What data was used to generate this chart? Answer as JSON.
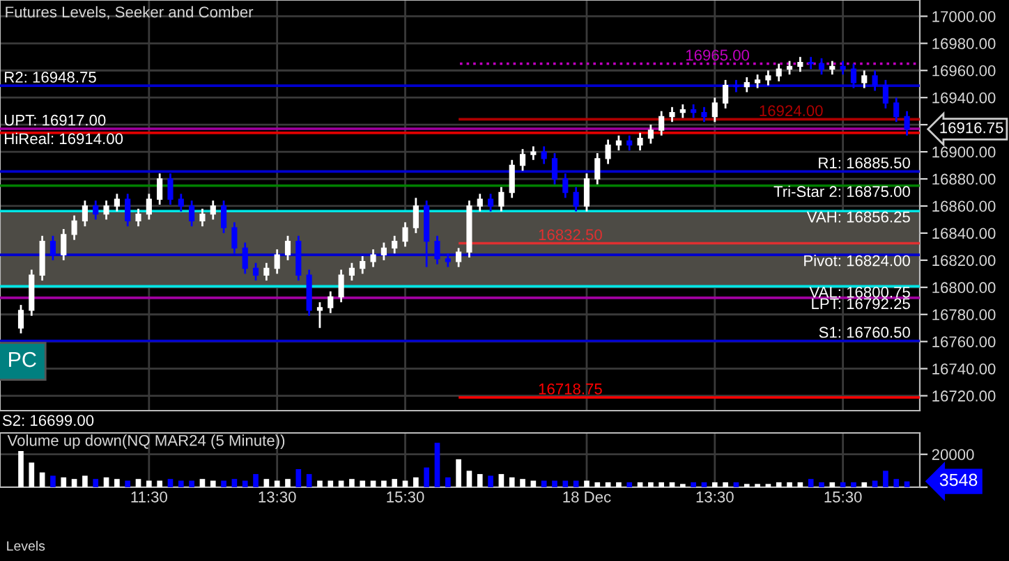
{
  "chart_data": [
    {
      "type": "candlestick",
      "title": "Futures Levels, Seeker and Comber",
      "categories": [
        null,
        null,
        null,
        null,
        null,
        null,
        null,
        null,
        null,
        null,
        null,
        null,
        null,
        null,
        null,
        null,
        null,
        null,
        null,
        null,
        null,
        null,
        null,
        null,
        null,
        null,
        null,
        null,
        null,
        null,
        null,
        null,
        null,
        null,
        null,
        null,
        null,
        null,
        null,
        null,
        null,
        null,
        null,
        null,
        null,
        null,
        null,
        null,
        null,
        null,
        null,
        null,
        null,
        null,
        null,
        null,
        null,
        null,
        null,
        null,
        null,
        null,
        null,
        null,
        null,
        null,
        null,
        null,
        null,
        null,
        null,
        null,
        null,
        null,
        null,
        null,
        null,
        null,
        null,
        null,
        null,
        null,
        null,
        null
      ],
      "ohlc": [
        [
          16770,
          16787,
          16766,
          16783
        ],
        [
          16783,
          16813,
          16779,
          16809
        ],
        [
          16809,
          16838,
          16805,
          16834
        ],
        [
          16834,
          16838,
          16820,
          16824
        ],
        [
          16824,
          16843,
          16820,
          16839
        ],
        [
          16839,
          16853,
          16835,
          16849
        ],
        [
          16849,
          16864,
          16845,
          16860
        ],
        [
          16860,
          16864,
          16850,
          16854
        ],
        [
          16854,
          16864,
          16850,
          16860
        ],
        [
          16860,
          16869,
          16856,
          16865
        ],
        [
          16865,
          16869,
          16845,
          16849
        ],
        [
          16849,
          16858,
          16845,
          16854
        ],
        [
          16854,
          16869,
          16850,
          16865
        ],
        [
          16865,
          16884,
          16861,
          16880
        ],
        [
          16880,
          16884,
          16861,
          16865
        ],
        [
          16865,
          16869,
          16856,
          16860
        ],
        [
          16860,
          16864,
          16845,
          16849
        ],
        [
          16849,
          16858,
          16845,
          16854
        ],
        [
          16854,
          16864,
          16850,
          16860
        ],
        [
          16860,
          16864,
          16840,
          16844
        ],
        [
          16844,
          16848,
          16825,
          16829
        ],
        [
          16829,
          16833,
          16810,
          16814
        ],
        [
          16814,
          16818,
          16805,
          16809
        ],
        [
          16809,
          16818,
          16805,
          16814
        ],
        [
          16814,
          16828,
          16810,
          16824
        ],
        [
          16824,
          16838,
          16820,
          16834
        ],
        [
          16834,
          16838,
          16805,
          16809
        ],
        [
          16809,
          16813,
          16779,
          16783
        ],
        [
          16783,
          16789,
          16770,
          16785
        ],
        [
          16785,
          16797,
          16781,
          16793
        ],
        [
          16793,
          16813,
          16789,
          16809
        ],
        [
          16809,
          16818,
          16805,
          16814
        ],
        [
          16814,
          16823,
          16810,
          16819
        ],
        [
          16819,
          16828,
          16815,
          16824
        ],
        [
          16824,
          16833,
          16820,
          16829
        ],
        [
          16829,
          16838,
          16825,
          16834
        ],
        [
          16834,
          16848,
          16830,
          16844
        ],
        [
          16844,
          16866,
          16840,
          16860
        ],
        [
          16860,
          16864,
          16815,
          16834
        ],
        [
          16834,
          16838,
          16817,
          16821
        ],
        [
          16821,
          16825,
          16815,
          16819
        ],
        [
          16819,
          16829,
          16815,
          16826
        ],
        [
          16826,
          16864,
          16822,
          16860
        ],
        [
          16860,
          16869,
          16856,
          16865
        ],
        [
          16865,
          16869,
          16856,
          16860
        ],
        [
          16860,
          16874,
          16856,
          16870
        ],
        [
          16870,
          16894,
          16866,
          16890
        ],
        [
          16890,
          16902,
          16886,
          16898
        ],
        [
          16898,
          16904,
          16894,
          16900
        ],
        [
          16900,
          16904,
          16891,
          16895
        ],
        [
          16895,
          16899,
          16876,
          16880
        ],
        [
          16880,
          16884,
          16866,
          16870
        ],
        [
          16870,
          16874,
          16856,
          16860
        ],
        [
          16860,
          16884,
          16856,
          16880
        ],
        [
          16880,
          16899,
          16876,
          16895
        ],
        [
          16895,
          16909,
          16891,
          16905
        ],
        [
          16905,
          16912,
          16901,
          16908
        ],
        [
          16908,
          16912,
          16901,
          16905
        ],
        [
          16905,
          16914,
          16901,
          16910
        ],
        [
          16910,
          16920,
          16906,
          16916
        ],
        [
          16916,
          16930,
          16912,
          16926
        ],
        [
          16926,
          16933,
          16922,
          16929
        ],
        [
          16929,
          16935,
          16925,
          16931
        ],
        [
          16931,
          16935,
          16925,
          16929
        ],
        [
          16929,
          16933,
          16922,
          16926
        ],
        [
          16926,
          16940,
          16922,
          16936
        ],
        [
          16936,
          16953,
          16932,
          16949
        ],
        [
          16949,
          16953,
          16944,
          16948
        ],
        [
          16948,
          16955,
          16944,
          16951
        ],
        [
          16951,
          16957,
          16947,
          16953
        ],
        [
          16953,
          16960,
          16949,
          16956
        ],
        [
          16956,
          16965,
          16952,
          16961
        ],
        [
          16961,
          16967,
          16957,
          16963
        ],
        [
          16963,
          16970,
          16959,
          16966
        ],
        [
          16966,
          16970,
          16961,
          16965
        ],
        [
          16965,
          16969,
          16957,
          16961
        ],
        [
          16961,
          16967,
          16957,
          16963
        ],
        [
          16963,
          16967,
          16957,
          16961
        ],
        [
          16961,
          16965,
          16947,
          16951
        ],
        [
          16951,
          16960,
          16947,
          16956
        ],
        [
          16956,
          16960,
          16945,
          16949
        ],
        [
          16949,
          16953,
          16932,
          16936
        ],
        [
          16936,
          16940,
          16922,
          16926
        ],
        [
          16926,
          16930,
          16912,
          16916.75
        ]
      ],
      "colors": [
        "#ffffff",
        "#ffffff",
        "#ffffff",
        "#0000ff",
        "#ffffff",
        "#ffffff",
        "#ffffff",
        "#0000ff",
        "#ffffff",
        "#ffffff",
        "#0000ff",
        "#ffffff",
        "#ffffff",
        "#ffffff",
        "#0000ff",
        "#0000ff",
        "#0000ff",
        "#ffffff",
        "#ffffff",
        "#0000ff",
        "#0000ff",
        "#0000ff",
        "#0000ff",
        "#ffffff",
        "#ffffff",
        "#ffffff",
        "#0000ff",
        "#0000ff",
        "#ffffff",
        "#ffffff",
        "#ffffff",
        "#ffffff",
        "#ffffff",
        "#ffffff",
        "#ffffff",
        "#ffffff",
        "#ffffff",
        "#ffffff",
        "#0000ff",
        "#0000ff",
        "#0000ff",
        "#ffffff",
        "#ffffff",
        "#ffffff",
        "#0000ff",
        "#ffffff",
        "#ffffff",
        "#ffffff",
        "#ffffff",
        "#0000ff",
        "#0000ff",
        "#0000ff",
        "#0000ff",
        "#ffffff",
        "#ffffff",
        "#ffffff",
        "#ffffff",
        "#0000ff",
        "#ffffff",
        "#ffffff",
        "#ffffff",
        "#ffffff",
        "#ffffff",
        "#0000ff",
        "#0000ff",
        "#ffffff",
        "#ffffff",
        "#0000ff",
        "#ffffff",
        "#ffffff",
        "#ffffff",
        "#ffffff",
        "#ffffff",
        "#ffffff",
        "#0000ff",
        "#0000ff",
        "#ffffff",
        "#0000ff",
        "#0000ff",
        "#ffffff",
        "#0000ff",
        "#0000ff",
        "#0000ff",
        "#0000ff"
      ],
      "ylim": [
        16709,
        17012
      ],
      "yticks": [
        {
          "value": 16720,
          "label": "16720.00"
        },
        {
          "value": 16740,
          "label": "16740.00"
        },
        {
          "value": 16760,
          "label": "16760.00"
        },
        {
          "value": 16780,
          "label": "16780.00"
        },
        {
          "value": 16800,
          "label": "16800.00"
        },
        {
          "value": 16820,
          "label": "16820.00"
        },
        {
          "value": 16840,
          "label": "16840.00"
        },
        {
          "value": 16860,
          "label": "16860.00"
        },
        {
          "value": 16880,
          "label": "16880.00"
        },
        {
          "value": 16900,
          "label": "16900.00"
        },
        {
          "value": 16920,
          "label": null
        },
        {
          "value": 16940,
          "label": "16940.00"
        },
        {
          "value": 16960,
          "label": "16960.00"
        },
        {
          "value": 16980,
          "label": "16980.00"
        },
        {
          "value": 17000,
          "label": "17000.00"
        }
      ],
      "grid": true,
      "tick_labels": "y",
      "bands": [
        {
          "axis": "y",
          "from": 16800.75,
          "to": 16856.25,
          "color": "#4d4b45"
        }
      ],
      "ref_lines": [
        {
          "axis": "y",
          "value": 16948.75,
          "label": "R2: 16948.75",
          "color": "#0000cd"
        },
        {
          "axis": "y",
          "value": 16917.0,
          "label": "UPT: 16917.00",
          "color": "#a000a0"
        },
        {
          "axis": "y",
          "value": 16914.0,
          "label": "HiReal: 16914.00",
          "color": "#e00000"
        },
        {
          "axis": "y",
          "value": 16885.5,
          "label": "R1: 16885.50",
          "color": "#0000cd"
        },
        {
          "axis": "y",
          "value": 16875.0,
          "label": "Tri-Star 2: 16875.00",
          "color": "#008000"
        },
        {
          "axis": "y",
          "value": 16856.25,
          "label": "VAH: 16856.25",
          "color": "#00e5e5"
        },
        {
          "axis": "y",
          "value": 16824.0,
          "label": "Pivot: 16824.00",
          "color": "#0000cd"
        },
        {
          "axis": "y",
          "value": 16800.75,
          "label": "VAL: 16800.75",
          "color": "#00e5e5"
        },
        {
          "axis": "y",
          "value": 16792.25,
          "label": "LPT: 16792.25",
          "color": "#a000a0"
        },
        {
          "axis": "y",
          "value": 16760.5,
          "label": "S1: 16760.50",
          "color": "#0000cd"
        },
        {
          "axis": "y",
          "value": 16718.75,
          "label": "16718.75",
          "color": "#ff0000"
        },
        {
          "axis": "y",
          "value": 16832.5,
          "label": "16832.50",
          "color": "#e03030"
        },
        {
          "axis": "y",
          "value": 16924.0,
          "label": "16924.00",
          "color": "#b00000"
        },
        {
          "axis": "y",
          "value": 16965.0,
          "label": "16965.00",
          "color": "#c000c0",
          "line_style": "dotted"
        }
      ],
      "annotations": [
        "16916.75",
        "PC",
        "S2: 16699.00"
      ]
    },
    {
      "type": "bar",
      "title": "Volume up down(NQ MAR24 (5 Minute))",
      "categories": [
        null,
        null,
        null,
        null,
        null,
        null,
        null,
        null,
        null,
        null,
        null,
        null,
        "11:30",
        null,
        null,
        null,
        null,
        null,
        null,
        null,
        null,
        null,
        null,
        null,
        "13:30",
        null,
        null,
        null,
        null,
        null,
        null,
        null,
        null,
        null,
        null,
        null,
        "15:30",
        null,
        null,
        null,
        null,
        null,
        null,
        null,
        null,
        null,
        null,
        null,
        null,
        null,
        null,
        null,
        null,
        "18 Dec",
        null,
        null,
        null,
        null,
        null,
        null,
        null,
        null,
        null,
        null,
        null,
        "13:30",
        null,
        null,
        null,
        null,
        null,
        null,
        null,
        null,
        null,
        null,
        null,
        "15:30",
        null,
        null,
        null,
        null,
        null,
        null
      ],
      "values": [
        22000,
        15000,
        9000,
        7000,
        6000,
        5000,
        7000,
        5000,
        6000,
        5000,
        4000,
        5000,
        4000,
        4000,
        5000,
        4000,
        4000,
        5000,
        4000,
        4000,
        5000,
        4000,
        8000,
        5000,
        4000,
        5000,
        11000,
        8000,
        4000,
        4000,
        4000,
        5000,
        4000,
        4000,
        4000,
        5000,
        4000,
        6000,
        12000,
        27000,
        6000,
        17000,
        10000,
        8000,
        7000,
        8000,
        6000,
        5000,
        4000,
        4000,
        4000,
        4000,
        4000,
        4000,
        3000,
        3000,
        3000,
        3000,
        3000,
        3000,
        3000,
        3000,
        2000,
        3000,
        3000,
        3000,
        3000,
        3000,
        2000,
        2000,
        2000,
        3000,
        3000,
        3000,
        5000,
        3000,
        3000,
        3000,
        3000,
        3000,
        4000,
        10000,
        5000,
        3548
      ],
      "colors": [
        "#ffffff",
        "#ffffff",
        "#ffffff",
        "#0000ff",
        "#ffffff",
        "#ffffff",
        "#ffffff",
        "#0000ff",
        "#ffffff",
        "#ffffff",
        "#0000ff",
        "#ffffff",
        "#ffffff",
        "#ffffff",
        "#0000ff",
        "#0000ff",
        "#0000ff",
        "#ffffff",
        "#ffffff",
        "#0000ff",
        "#0000ff",
        "#0000ff",
        "#0000ff",
        "#ffffff",
        "#ffffff",
        "#ffffff",
        "#0000ff",
        "#0000ff",
        "#ffffff",
        "#ffffff",
        "#ffffff",
        "#ffffff",
        "#ffffff",
        "#ffffff",
        "#ffffff",
        "#ffffff",
        "#ffffff",
        "#ffffff",
        "#0000ff",
        "#0000ff",
        "#0000ff",
        "#ffffff",
        "#ffffff",
        "#ffffff",
        "#0000ff",
        "#ffffff",
        "#ffffff",
        "#ffffff",
        "#ffffff",
        "#0000ff",
        "#0000ff",
        "#0000ff",
        "#0000ff",
        "#ffffff",
        "#ffffff",
        "#ffffff",
        "#ffffff",
        "#0000ff",
        "#ffffff",
        "#ffffff",
        "#ffffff",
        "#ffffff",
        "#ffffff",
        "#0000ff",
        "#0000ff",
        "#ffffff",
        "#ffffff",
        "#0000ff",
        "#ffffff",
        "#ffffff",
        "#ffffff",
        "#ffffff",
        "#ffffff",
        "#ffffff",
        "#0000ff",
        "#0000ff",
        "#ffffff",
        "#0000ff",
        "#0000ff",
        "#ffffff",
        "#0000ff",
        "#0000ff",
        "#0000ff",
        "#0000ff"
      ],
      "ylim": [
        0,
        33000
      ],
      "yticks": [
        {
          "value": 0,
          "label": null
        },
        20000
      ],
      "grid": true,
      "annotations": [
        "3548",
        "Levels"
      ]
    }
  ]
}
